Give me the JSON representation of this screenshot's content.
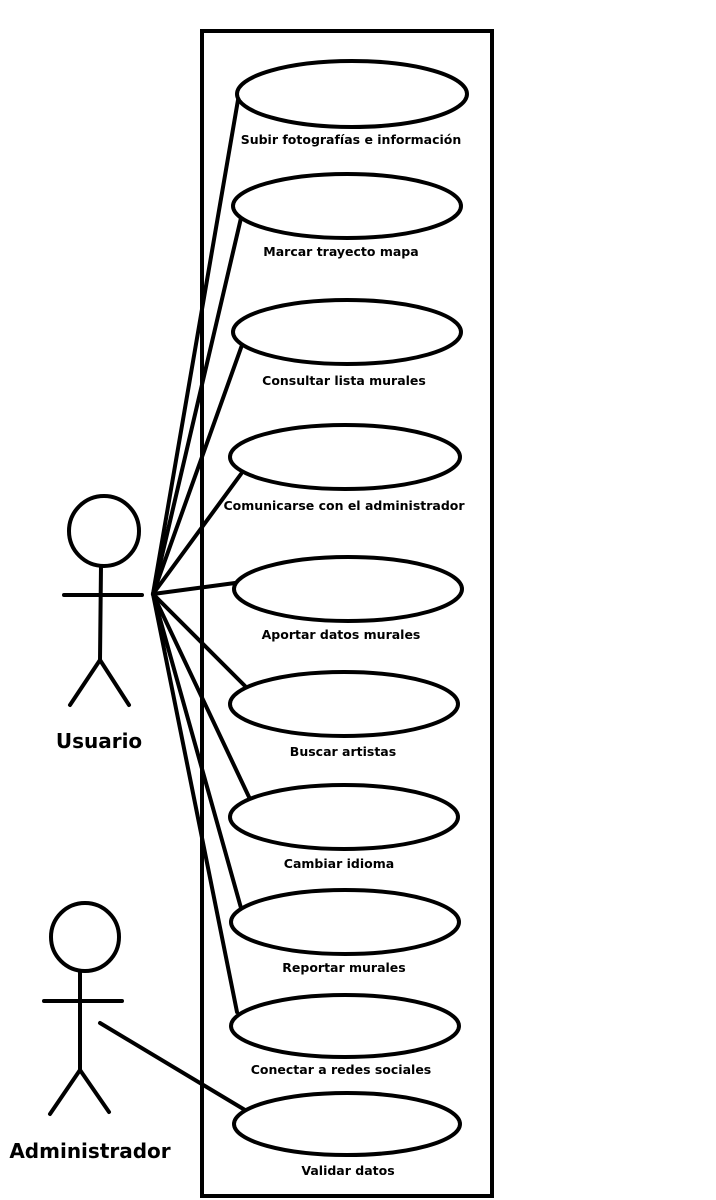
{
  "actors": [
    {
      "id": "usuario",
      "label": "Usuario"
    },
    {
      "id": "administrador",
      "label": "Administrador"
    }
  ],
  "use_cases": [
    {
      "label": "Subir fotografías e información",
      "actor": "usuario"
    },
    {
      "label": "Marcar trayecto mapa",
      "actor": "usuario"
    },
    {
      "label": "Consultar lista murales",
      "actor": "usuario"
    },
    {
      "label": "Comunicarse con el administrador",
      "actor": "usuario"
    },
    {
      "label": "Aportar datos murales",
      "actor": "usuario"
    },
    {
      "label": "Buscar artistas",
      "actor": "usuario"
    },
    {
      "label": "Cambiar idioma",
      "actor": "usuario"
    },
    {
      "label": "Reportar murales",
      "actor": "usuario"
    },
    {
      "label": "Conectar a redes sociales",
      "actor": "usuario"
    },
    {
      "label": "Validar datos",
      "actor": "administrador"
    }
  ]
}
